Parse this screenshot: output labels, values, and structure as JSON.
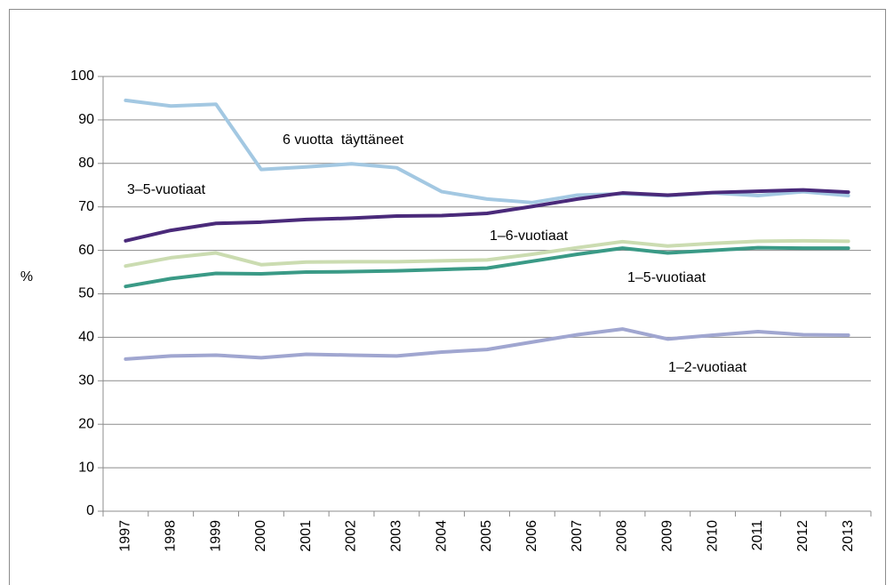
{
  "chart_data": {
    "type": "line",
    "y_label": "%",
    "categories": [
      "1997",
      "1998",
      "1999",
      "2000",
      "2001",
      "2002",
      "2003",
      "2004",
      "2005",
      "2006",
      "2007",
      "2008",
      "2009",
      "2010",
      "2011",
      "2012",
      "2013"
    ],
    "ylim": [
      0,
      100
    ],
    "yticks": [
      0,
      10,
      20,
      30,
      40,
      50,
      60,
      70,
      80,
      90,
      100
    ],
    "grid": true,
    "series": [
      {
        "name": "6 vuotta  täyttäneet",
        "color": "#a3c8e2",
        "values": [
          94.5,
          93.2,
          93.6,
          78.6,
          79.2,
          79.9,
          79.0,
          73.5,
          71.8,
          71.0,
          72.7,
          73.0,
          72.6,
          73.2,
          72.6,
          73.5,
          72.6
        ]
      },
      {
        "name": "3–5-vuotiaat",
        "color": "#4a2a7a",
        "values": [
          62.2,
          64.6,
          66.2,
          66.5,
          67.1,
          67.4,
          67.9,
          68.0,
          68.5,
          70.1,
          71.8,
          73.2,
          72.7,
          73.3,
          73.6,
          73.9,
          73.4
        ]
      },
      {
        "name": "1–6-vuotiaat",
        "color": "#cbdcb1",
        "values": [
          56.4,
          58.3,
          59.4,
          56.7,
          57.3,
          57.4,
          57.4,
          57.6,
          57.8,
          59.1,
          60.6,
          62.0,
          61.0,
          61.6,
          62.1,
          62.2,
          62.1
        ]
      },
      {
        "name": "1–5-vuotiaat",
        "color": "#3a9a86",
        "values": [
          51.7,
          53.5,
          54.7,
          54.6,
          55.0,
          55.1,
          55.3,
          55.6,
          55.9,
          57.5,
          59.1,
          60.5,
          59.4,
          60.0,
          60.6,
          60.5,
          60.5
        ]
      },
      {
        "name": "1–2-vuotiaat",
        "color": "#a0a6d0",
        "values": [
          35.0,
          35.7,
          35.9,
          35.3,
          36.1,
          35.9,
          35.7,
          36.6,
          37.2,
          38.9,
          40.6,
          41.9,
          39.6,
          40.5,
          41.3,
          40.6,
          40.5
        ]
      }
    ]
  }
}
